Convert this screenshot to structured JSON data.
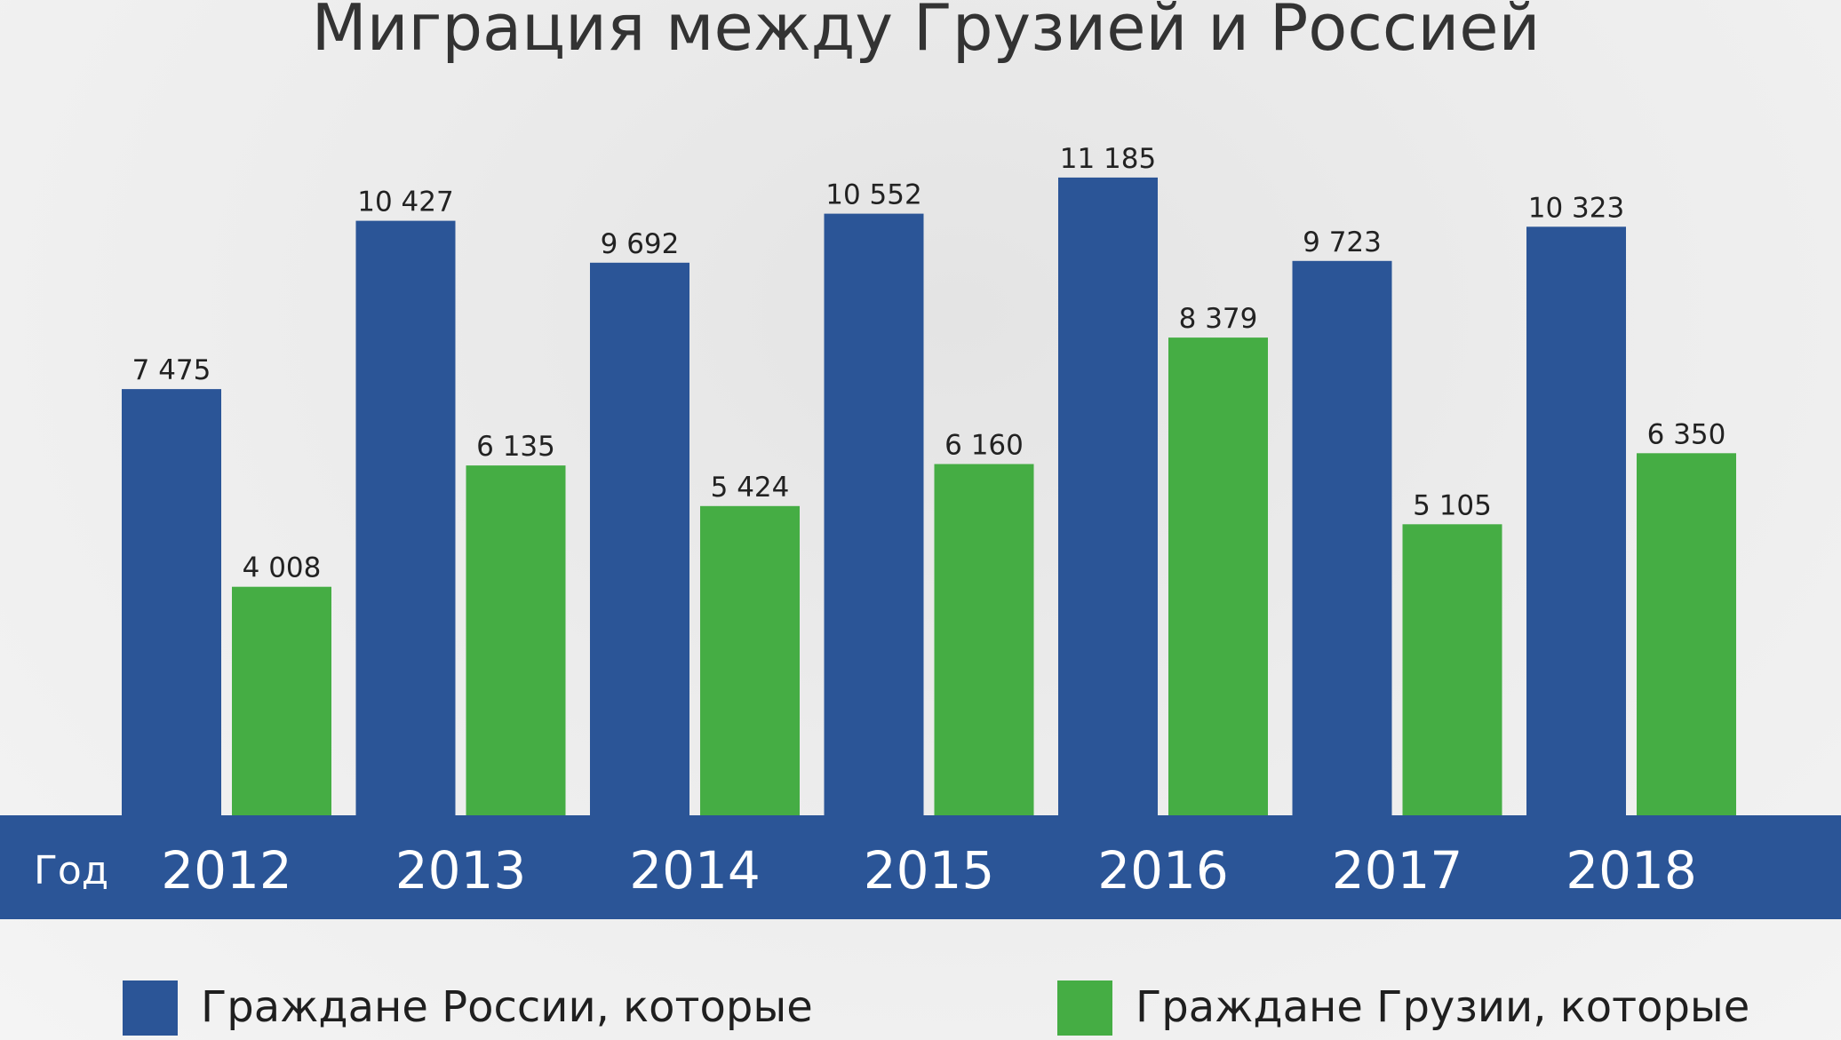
{
  "colors": {
    "russia": "#2b5597",
    "georgia": "#45ad44",
    "band": "#2b5597"
  },
  "chart_data": {
    "type": "bar",
    "title": "Миграция между Грузией и Россией",
    "xlabel": "Год",
    "categories": [
      "2012",
      "2013",
      "2014",
      "2015",
      "2016",
      "2017",
      "2018"
    ],
    "ylim": [
      0,
      12000
    ],
    "grid": false,
    "legend_position": "bottom",
    "series": [
      {
        "name": "Граждане России, которые",
        "values": [
          7475,
          10427,
          9692,
          10552,
          11185,
          9723,
          10323
        ],
        "labels": [
          "7 475",
          "10 427",
          "9 692",
          "10 552",
          "11 185",
          "9 723",
          "10 323"
        ]
      },
      {
        "name": "Граждане Грузии, которые",
        "values": [
          4008,
          6135,
          5424,
          6160,
          8379,
          5105,
          6350
        ],
        "labels": [
          "4 008",
          "6 135",
          "5 424",
          "6 160",
          "8 379",
          "5 105",
          "6 350"
        ]
      }
    ]
  }
}
